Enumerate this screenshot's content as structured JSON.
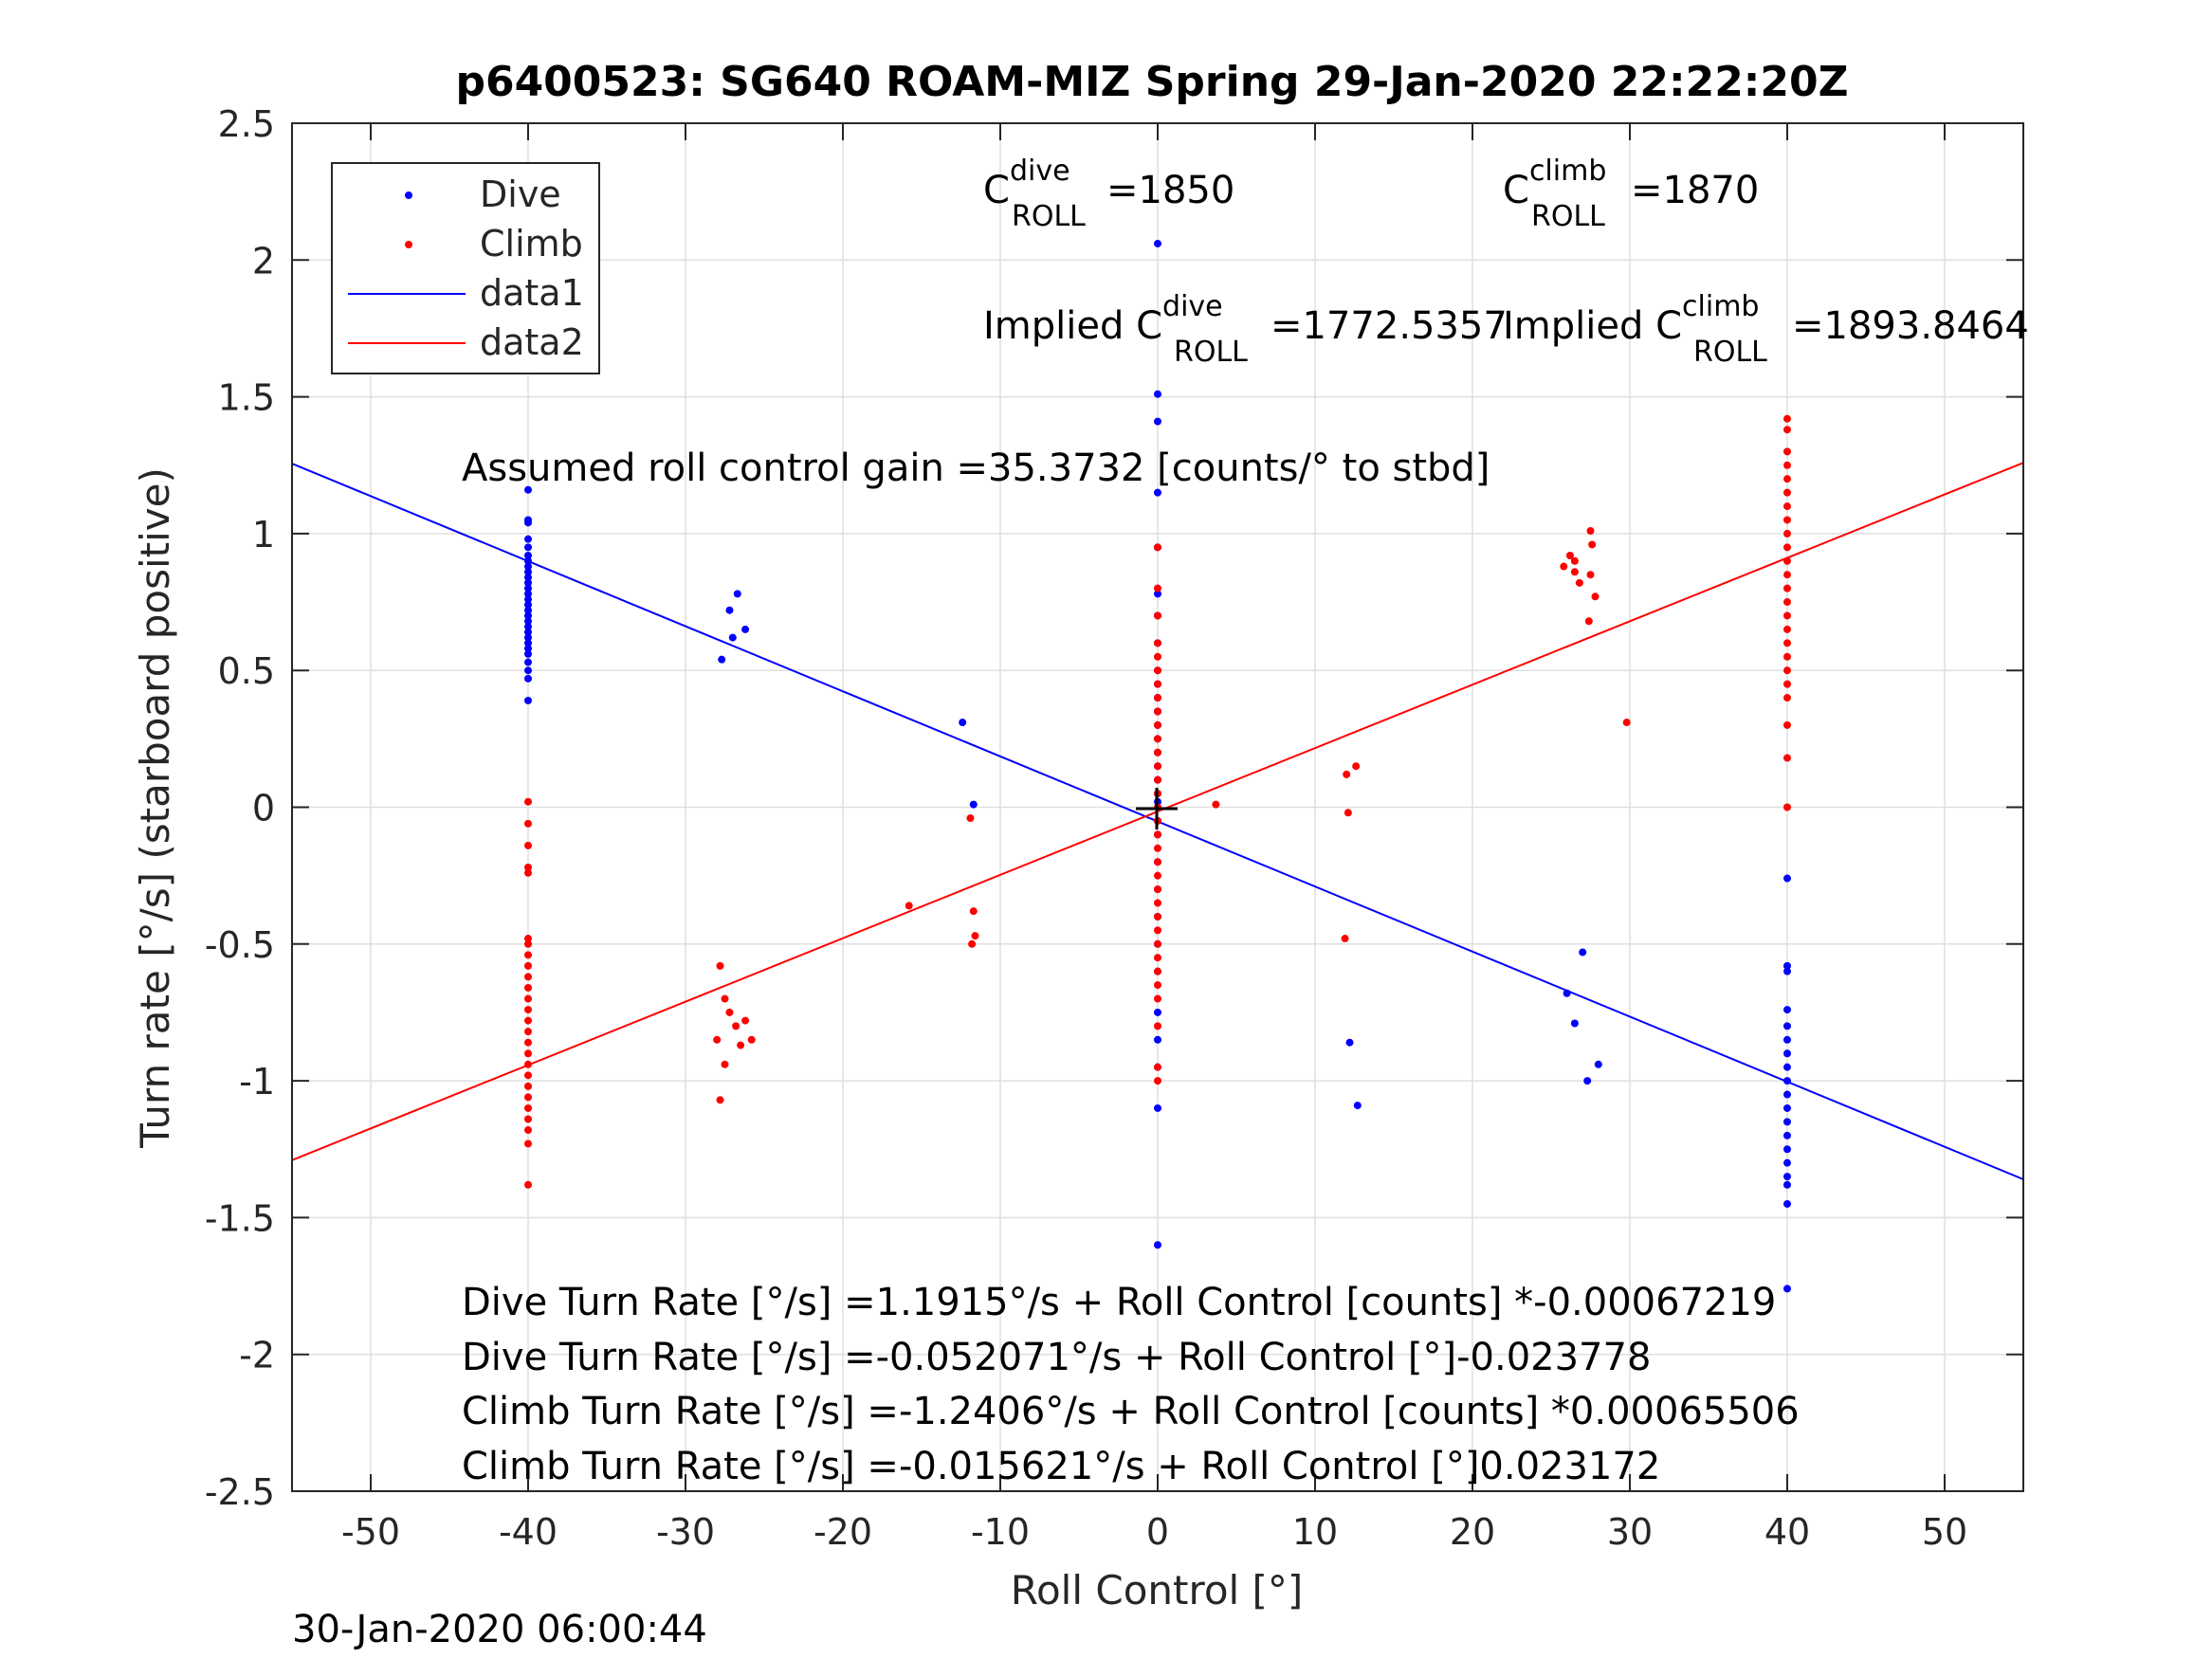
{
  "chart_data": {
    "type": "scatter",
    "title": "p6400523: SG640 ROAM-MIZ Spring 29-Jan-2020 22:22:20Z",
    "xlabel": "Roll Control [°]",
    "ylabel": "Turn rate [°/s] (starboard positive)",
    "xlim": [
      -55,
      55
    ],
    "ylim": [
      -2.5,
      2.5
    ],
    "xticks": [
      "-50",
      "-40",
      "-30",
      "-20",
      "-10",
      "0",
      "10",
      "20",
      "30",
      "40",
      "50"
    ],
    "yticks": [
      "2.5",
      "2",
      "1.5",
      "1",
      "0.5",
      "0",
      "-0.5",
      "-1",
      "-1.5",
      "-2",
      "-2.5"
    ],
    "grid": true,
    "legend_position": "top-left",
    "legend": [
      "Dive",
      "Climb",
      "data1",
      "data2"
    ],
    "colors": {
      "dive": "#0000ff",
      "climb": "#ff0000"
    },
    "annotations": {
      "c_dive": {
        "prefix": "C",
        "sup": "dive",
        "sub": "ROLL",
        "value": "=1850"
      },
      "c_climb": {
        "prefix": "C",
        "sup": "climb",
        "sub": "ROLL",
        "value": "=1870"
      },
      "implied_dive": {
        "prefix": "Implied C",
        "sup": "dive",
        "sub": "ROLL",
        "value": "=1772.5357"
      },
      "implied_climb": {
        "prefix": "Implied C",
        "sup": "climb",
        "sub": "ROLL",
        "value": "=1893.8464"
      },
      "gain": "Assumed roll control gain =35.3732 [counts/° to stbd]",
      "eq": [
        "Dive Turn Rate [°/s] =1.1915°/s + Roll Control [counts] *-0.00067219",
        "Dive Turn Rate [°/s] =-0.052071°/s + Roll Control [°]-0.023778",
        "Climb Turn Rate [°/s] =-1.2406°/s + Roll Control [counts] *0.00065506",
        "Climb Turn Rate [°/s] =-0.015621°/s + Roll Control [°]0.023172"
      ]
    },
    "fit_lines": [
      {
        "name": "data1",
        "color": "#0000ff",
        "x": [
          -55,
          55
        ],
        "y": [
          1.256,
          -1.36
        ]
      },
      {
        "name": "data2",
        "color": "#ff0000",
        "x": [
          -55,
          55
        ],
        "y": [
          -1.29,
          1.259
        ]
      }
    ],
    "series": [
      {
        "name": "Dive",
        "color": "#0000ff",
        "points": [
          [
            -40,
            1.16
          ],
          [
            -40,
            1.05
          ],
          [
            -40,
            1.04
          ],
          [
            -40,
            0.98
          ],
          [
            -40,
            0.95
          ],
          [
            -40,
            0.92
          ],
          [
            -40,
            0.9
          ],
          [
            -40,
            0.88
          ],
          [
            -40,
            0.86
          ],
          [
            -40,
            0.84
          ],
          [
            -40,
            0.82
          ],
          [
            -40,
            0.8
          ],
          [
            -40,
            0.78
          ],
          [
            -40,
            0.76
          ],
          [
            -40,
            0.74
          ],
          [
            -40,
            0.72
          ],
          [
            -40,
            0.7
          ],
          [
            -40,
            0.68
          ],
          [
            -40,
            0.66
          ],
          [
            -40,
            0.64
          ],
          [
            -40,
            0.62
          ],
          [
            -40,
            0.6
          ],
          [
            -40,
            0.58
          ],
          [
            -40,
            0.56
          ],
          [
            -40,
            0.53
          ],
          [
            -40,
            0.5
          ],
          [
            -40,
            0.47
          ],
          [
            -40,
            0.39
          ],
          [
            -27.2,
            0.72
          ],
          [
            -26.7,
            0.78
          ],
          [
            -26.2,
            0.65
          ],
          [
            -27.0,
            0.62
          ],
          [
            -27.7,
            0.54
          ],
          [
            -12.4,
            0.31
          ],
          [
            -11.7,
            0.01
          ],
          [
            0,
            2.06
          ],
          [
            0,
            1.51
          ],
          [
            0,
            1.41
          ],
          [
            0,
            1.15
          ],
          [
            0,
            0.95
          ],
          [
            0,
            0.78
          ],
          [
            0,
            0.7
          ],
          [
            0,
            0.6
          ],
          [
            0,
            0.5
          ],
          [
            0,
            0.45
          ],
          [
            0,
            0.4
          ],
          [
            0,
            0.35
          ],
          [
            0,
            0.3
          ],
          [
            0,
            0.25
          ],
          [
            0,
            0.2
          ],
          [
            0,
            0.15
          ],
          [
            0,
            0.1
          ],
          [
            0,
            0.05
          ],
          [
            0,
            0.02
          ],
          [
            0,
            -0.05
          ],
          [
            0,
            -0.1
          ],
          [
            0,
            -0.2
          ],
          [
            0,
            -0.3
          ],
          [
            0,
            -0.4
          ],
          [
            0,
            -0.5
          ],
          [
            0,
            -0.6
          ],
          [
            0,
            -0.75
          ],
          [
            0,
            -0.85
          ],
          [
            0,
            -0.95
          ],
          [
            0,
            -1.1
          ],
          [
            0,
            -1.6
          ],
          [
            12.2,
            -0.86
          ],
          [
            12.7,
            -1.09
          ],
          [
            26.0,
            -0.68
          ],
          [
            26.5,
            -0.79
          ],
          [
            27.0,
            -0.53
          ],
          [
            27.3,
            -1.0
          ],
          [
            28.0,
            -0.94
          ],
          [
            40,
            -0.26
          ],
          [
            40,
            -0.58
          ],
          [
            40,
            -0.6
          ],
          [
            40,
            -0.74
          ],
          [
            40,
            -0.8
          ],
          [
            40,
            -0.85
          ],
          [
            40,
            -0.9
          ],
          [
            40,
            -0.95
          ],
          [
            40,
            -1.0
          ],
          [
            40,
            -1.05
          ],
          [
            40,
            -1.1
          ],
          [
            40,
            -1.15
          ],
          [
            40,
            -1.2
          ],
          [
            40,
            -1.25
          ],
          [
            40,
            -1.3
          ],
          [
            40,
            -1.35
          ],
          [
            40,
            -1.38
          ],
          [
            40,
            -1.45
          ],
          [
            40,
            -1.76
          ]
        ]
      },
      {
        "name": "Climb",
        "color": "#ff0000",
        "points": [
          [
            -40,
            0.02
          ],
          [
            -40,
            -0.06
          ],
          [
            -40,
            -0.14
          ],
          [
            -40,
            -0.22
          ],
          [
            -40,
            -0.24
          ],
          [
            -40,
            -0.48
          ],
          [
            -40,
            -0.5
          ],
          [
            -40,
            -0.54
          ],
          [
            -40,
            -0.58
          ],
          [
            -40,
            -0.62
          ],
          [
            -40,
            -0.66
          ],
          [
            -40,
            -0.7
          ],
          [
            -40,
            -0.74
          ],
          [
            -40,
            -0.78
          ],
          [
            -40,
            -0.82
          ],
          [
            -40,
            -0.86
          ],
          [
            -40,
            -0.9
          ],
          [
            -40,
            -0.94
          ],
          [
            -40,
            -0.98
          ],
          [
            -40,
            -1.02
          ],
          [
            -40,
            -1.06
          ],
          [
            -40,
            -1.1
          ],
          [
            -40,
            -1.14
          ],
          [
            -40,
            -1.18
          ],
          [
            -40,
            -1.23
          ],
          [
            -40,
            -1.38
          ],
          [
            -27.8,
            -0.58
          ],
          [
            -27.5,
            -0.7
          ],
          [
            -27.2,
            -0.75
          ],
          [
            -26.8,
            -0.8
          ],
          [
            -26.5,
            -0.87
          ],
          [
            -26.2,
            -0.78
          ],
          [
            -25.8,
            -0.85
          ],
          [
            -27.5,
            -0.94
          ],
          [
            -27.8,
            -1.07
          ],
          [
            -28.0,
            -0.85
          ],
          [
            -15.8,
            -0.36
          ],
          [
            -11.9,
            -0.04
          ],
          [
            -11.7,
            -0.38
          ],
          [
            -11.6,
            -0.47
          ],
          [
            -11.8,
            -0.5
          ],
          [
            0,
            0.95
          ],
          [
            0,
            0.8
          ],
          [
            0,
            0.7
          ],
          [
            0,
            0.6
          ],
          [
            0,
            0.55
          ],
          [
            0,
            0.5
          ],
          [
            0,
            0.45
          ],
          [
            0,
            0.4
          ],
          [
            0,
            0.35
          ],
          [
            0,
            0.3
          ],
          [
            0,
            0.25
          ],
          [
            0,
            0.2
          ],
          [
            0,
            0.15
          ],
          [
            0,
            0.1
          ],
          [
            0,
            0.05
          ],
          [
            0,
            0.0
          ],
          [
            0,
            -0.05
          ],
          [
            0,
            -0.1
          ],
          [
            0,
            -0.15
          ],
          [
            0,
            -0.2
          ],
          [
            0,
            -0.25
          ],
          [
            0,
            -0.3
          ],
          [
            0,
            -0.35
          ],
          [
            0,
            -0.4
          ],
          [
            0,
            -0.45
          ],
          [
            0,
            -0.5
          ],
          [
            0,
            -0.55
          ],
          [
            0,
            -0.6
          ],
          [
            0,
            -0.65
          ],
          [
            0,
            -0.7
          ],
          [
            0,
            -0.8
          ],
          [
            0,
            -0.95
          ],
          [
            0,
            -1.0
          ],
          [
            3.7,
            0.01
          ],
          [
            12.0,
            0.12
          ],
          [
            12.6,
            0.15
          ],
          [
            12.1,
            -0.02
          ],
          [
            11.9,
            -0.48
          ],
          [
            25.8,
            0.88
          ],
          [
            26.2,
            0.92
          ],
          [
            26.5,
            0.86
          ],
          [
            26.8,
            0.82
          ],
          [
            26.5,
            0.9
          ],
          [
            27.5,
            1.01
          ],
          [
            27.6,
            0.96
          ],
          [
            27.5,
            0.85
          ],
          [
            27.8,
            0.77
          ],
          [
            27.4,
            0.68
          ],
          [
            29.8,
            0.31
          ],
          [
            40,
            1.42
          ],
          [
            40,
            1.38
          ],
          [
            40,
            1.3
          ],
          [
            40,
            1.25
          ],
          [
            40,
            1.2
          ],
          [
            40,
            1.15
          ],
          [
            40,
            1.1
          ],
          [
            40,
            1.05
          ],
          [
            40,
            1.0
          ],
          [
            40,
            0.95
          ],
          [
            40,
            0.9
          ],
          [
            40,
            0.85
          ],
          [
            40,
            0.8
          ],
          [
            40,
            0.75
          ],
          [
            40,
            0.7
          ],
          [
            40,
            0.65
          ],
          [
            40,
            0.6
          ],
          [
            40,
            0.55
          ],
          [
            40,
            0.5
          ],
          [
            40,
            0.45
          ],
          [
            40,
            0.4
          ],
          [
            40,
            0.3
          ],
          [
            40,
            0.18
          ],
          [
            40,
            0.0
          ]
        ]
      }
    ]
  },
  "footer": {
    "timestamp": "30-Jan-2020 06:00:44"
  }
}
